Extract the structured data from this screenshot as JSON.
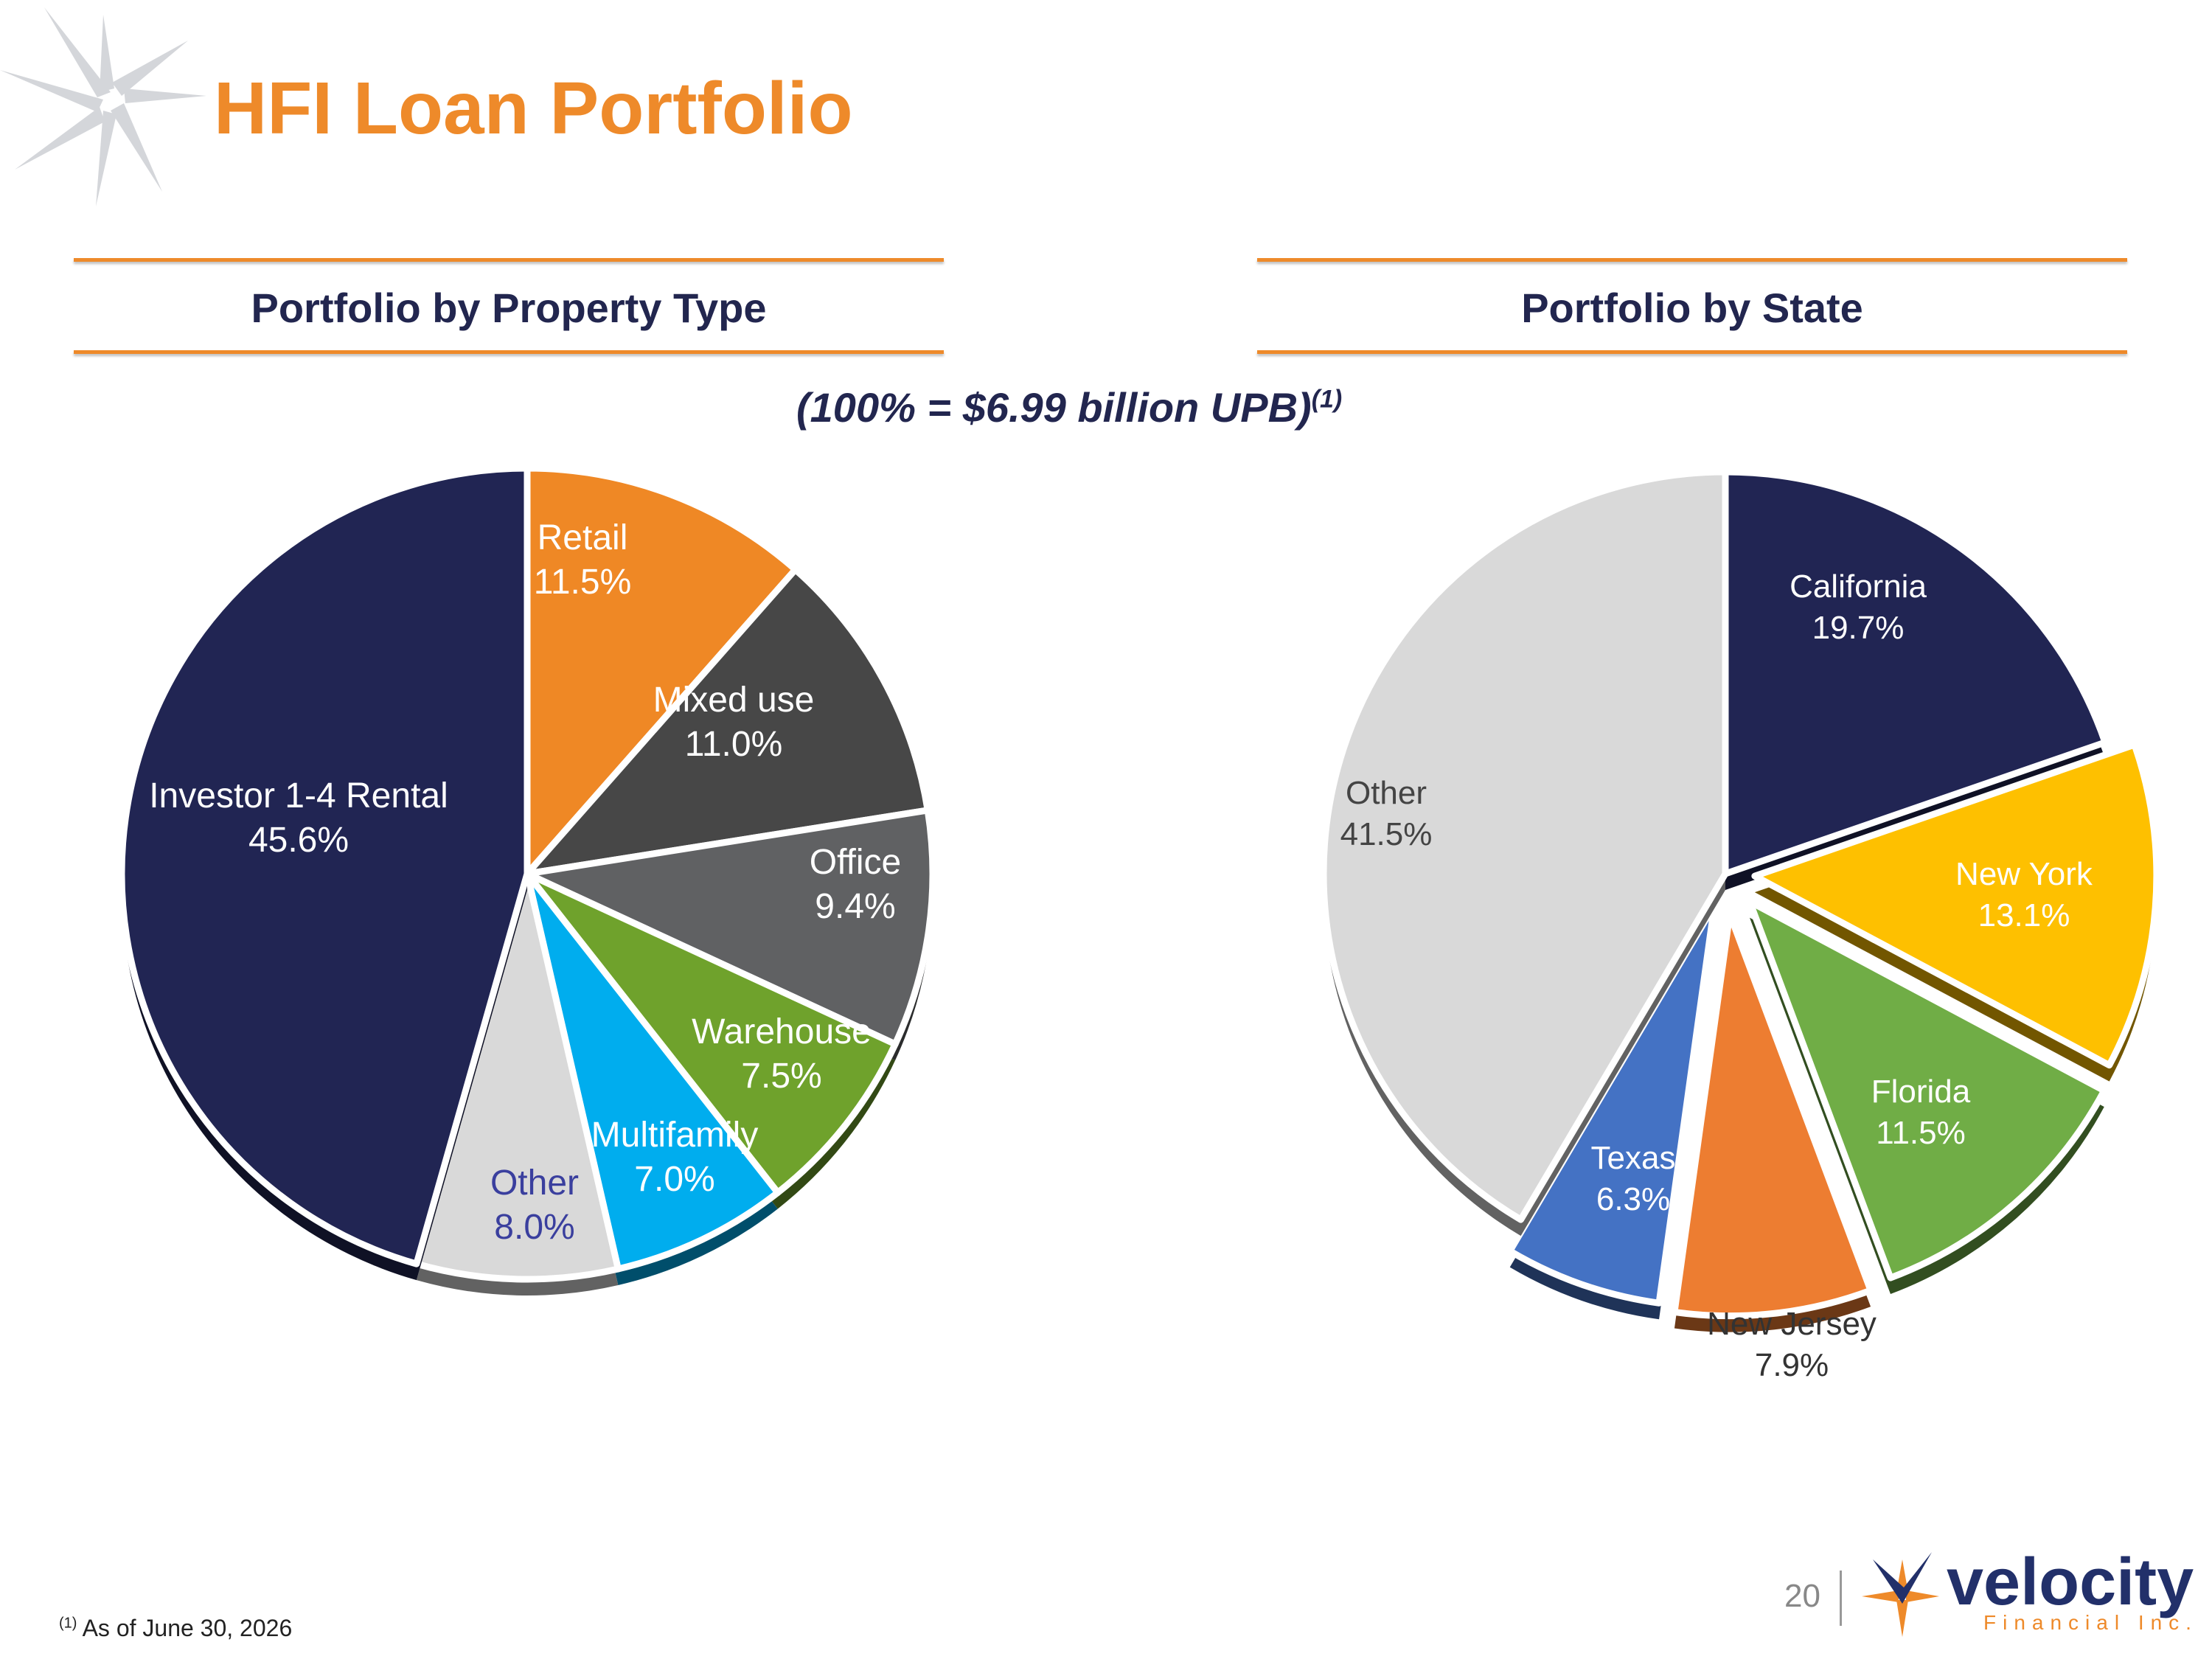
{
  "title": "HFI Loan Portfolio",
  "subtitle": "(100% = $6.99 billion UPB)",
  "subtitle_footnote_ref": "(1)",
  "footnote": {
    "ref": "(1)",
    "text": "As of June 30, 2026"
  },
  "page_number": "20",
  "logo": {
    "word": "velocity",
    "sub": "Financial Inc."
  },
  "chart_data": [
    {
      "type": "pie",
      "title": "Portfolio by Property Type",
      "categories": [
        "Retail",
        "Mixed use",
        "Office",
        "Warehouse",
        "Multifamily",
        "Other",
        "Investor 1-4 Rental"
      ],
      "values": [
        11.5,
        11.0,
        9.4,
        7.5,
        7.0,
        8.0,
        45.6
      ],
      "labels": [
        "11.5%",
        "11.0%",
        "9.4%",
        "7.5%",
        "7.0%",
        "8.0%",
        "45.6%"
      ],
      "colors": [
        "#ef8825",
        "#474747",
        "#606163",
        "#6fa22c",
        "#00adee",
        "#d9d9d9",
        "#212553"
      ]
    },
    {
      "type": "pie",
      "title": "Portfolio by State",
      "categories": [
        "California",
        "New York",
        "Florida",
        "New Jersey",
        "Texas",
        "Other"
      ],
      "values": [
        19.7,
        13.1,
        11.5,
        7.9,
        6.3,
        41.5
      ],
      "labels": [
        "19.7%",
        "13.1%",
        "11.5%",
        "7.9%",
        "6.3%",
        "41.5%"
      ],
      "colors": [
        "#212553",
        "#fec000",
        "#70ad46",
        "#ed7d31",
        "#4472c4",
        "#d9d9d9"
      ]
    }
  ]
}
